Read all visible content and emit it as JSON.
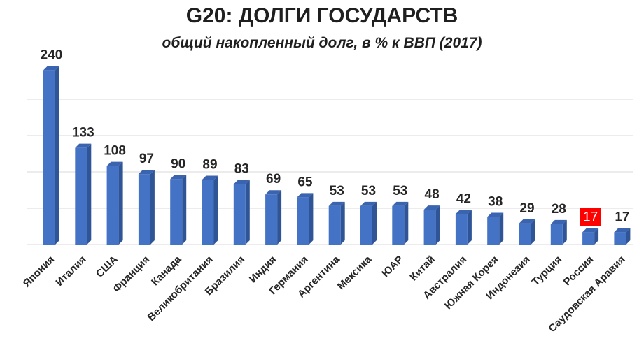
{
  "chart_data": {
    "type": "bar",
    "title": "G20: ДОЛГИ ГОСУДАРСТВ",
    "subtitle": "общий накопленный долг, в % к ВВП (2017)",
    "xlabel": "",
    "ylabel": "",
    "ylim": [
      0,
      250
    ],
    "grid": true,
    "categories": [
      "Япония",
      "Италия",
      "США",
      "Франция",
      "Канада",
      "Великобритания",
      "Бразилия",
      "Индия",
      "Германия",
      "Аргентина",
      "Мексика",
      "ЮАР",
      "Китай",
      "Австралия",
      "Южная Корея",
      "Индонезия",
      "Турция",
      "Россия",
      "Саудовская Аравия"
    ],
    "values": [
      240,
      133,
      108,
      97,
      90,
      89,
      83,
      69,
      65,
      53,
      53,
      53,
      48,
      42,
      38,
      29,
      28,
      17,
      17
    ],
    "value_labels": [
      "240",
      "133",
      "108",
      "97",
      "90",
      "89",
      "83",
      "69",
      "65",
      "53",
      "53",
      "53",
      "48",
      "42",
      "38",
      "29",
      "28",
      "17",
      "17"
    ],
    "highlight_category": "Россия",
    "colors": {
      "bar_front": "#4472c4",
      "bar_side": "#2f5597",
      "bar_top": "#3a64b0",
      "highlight_label_bg": "#ff0000",
      "grid": "#d9d9d9"
    }
  }
}
